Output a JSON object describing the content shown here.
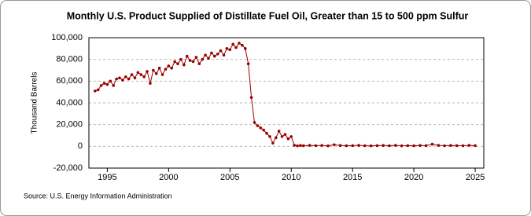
{
  "chart_data": {
    "type": "line",
    "title": "Monthly U.S. Product Supplied of Distillate Fuel Oil, Greater than 15 to 500 ppm Sulfur",
    "y_label": "Thousand Barrels",
    "source": "Source: U.S. Energy Information Administration",
    "x": [
      1994.0,
      1994.25,
      1994.5,
      1994.75,
      1995.0,
      1995.25,
      1995.5,
      1995.75,
      1996.0,
      1996.25,
      1996.5,
      1996.75,
      1997.0,
      1997.25,
      1997.5,
      1997.75,
      1998.0,
      1998.25,
      1998.5,
      1998.75,
      1999.0,
      1999.25,
      1999.5,
      1999.75,
      2000.0,
      2000.25,
      2000.5,
      2000.75,
      2001.0,
      2001.25,
      2001.5,
      2001.75,
      2002.0,
      2002.25,
      2002.5,
      2002.75,
      2003.0,
      2003.25,
      2003.5,
      2003.75,
      2004.0,
      2004.25,
      2004.5,
      2004.75,
      2005.0,
      2005.25,
      2005.5,
      2005.75,
      2006.0,
      2006.25,
      2006.5,
      2006.75,
      2007.0,
      2007.25,
      2007.5,
      2007.75,
      2008.0,
      2008.25,
      2008.5,
      2008.75,
      2009.0,
      2009.25,
      2009.5,
      2009.75,
      2010.0,
      2010.25,
      2010.5,
      2010.75,
      2011.0,
      2011.5,
      2012.0,
      2012.5,
      2013.0,
      2013.5,
      2014.0,
      2014.5,
      2015.0,
      2015.5,
      2016.0,
      2016.5,
      2017.0,
      2017.5,
      2018.0,
      2018.5,
      2019.0,
      2019.5,
      2020.0,
      2020.5,
      2021.0,
      2021.5,
      2022.0,
      2022.5,
      2023.0,
      2023.5,
      2024.0,
      2024.5,
      2025.0
    ],
    "series": [
      {
        "name": "Distillate Fuel Oil, Greater than 15 to 500 ppm Sulfur",
        "color": "#990000",
        "values": [
          51000,
          52000,
          56000,
          58000,
          57000,
          60000,
          56000,
          62000,
          63000,
          61000,
          64000,
          62000,
          66000,
          63000,
          68000,
          66000,
          64000,
          69000,
          58000,
          70000,
          67000,
          72000,
          66000,
          71000,
          74000,
          72000,
          78000,
          76000,
          80000,
          75000,
          83000,
          79000,
          78000,
          82000,
          76000,
          80000,
          84000,
          81000,
          86000,
          83000,
          85000,
          88000,
          84000,
          90000,
          89000,
          94000,
          91000,
          95000,
          93000,
          90000,
          76000,
          45000,
          22000,
          19000,
          17000,
          15000,
          12000,
          9000,
          3000,
          8000,
          14000,
          9000,
          11000,
          7000,
          9000,
          1000,
          500,
          800,
          600,
          900,
          700,
          800,
          500,
          1500,
          800,
          600,
          700,
          900,
          600,
          500,
          700,
          800,
          600,
          900,
          500,
          700,
          600,
          800,
          700,
          2000,
          900,
          600,
          800,
          700,
          600,
          900,
          700
        ]
      }
    ],
    "xlim": [
      1993.5,
      2025.7
    ],
    "xticks": [
      1995,
      2000,
      2005,
      2010,
      2015,
      2020,
      2025
    ],
    "ylim": [
      -20000,
      100000
    ],
    "yticks": [
      {
        "value": -20000,
        "label": "-20,000"
      },
      0,
      {
        "value": 20000,
        "label": "20,000"
      },
      {
        "value": 40000,
        "label": "40,000"
      },
      {
        "value": 60000,
        "label": "60,000"
      },
      {
        "value": 80000,
        "label": "80,000"
      },
      {
        "value": 100000,
        "label": "100,000"
      }
    ],
    "grid": true
  }
}
